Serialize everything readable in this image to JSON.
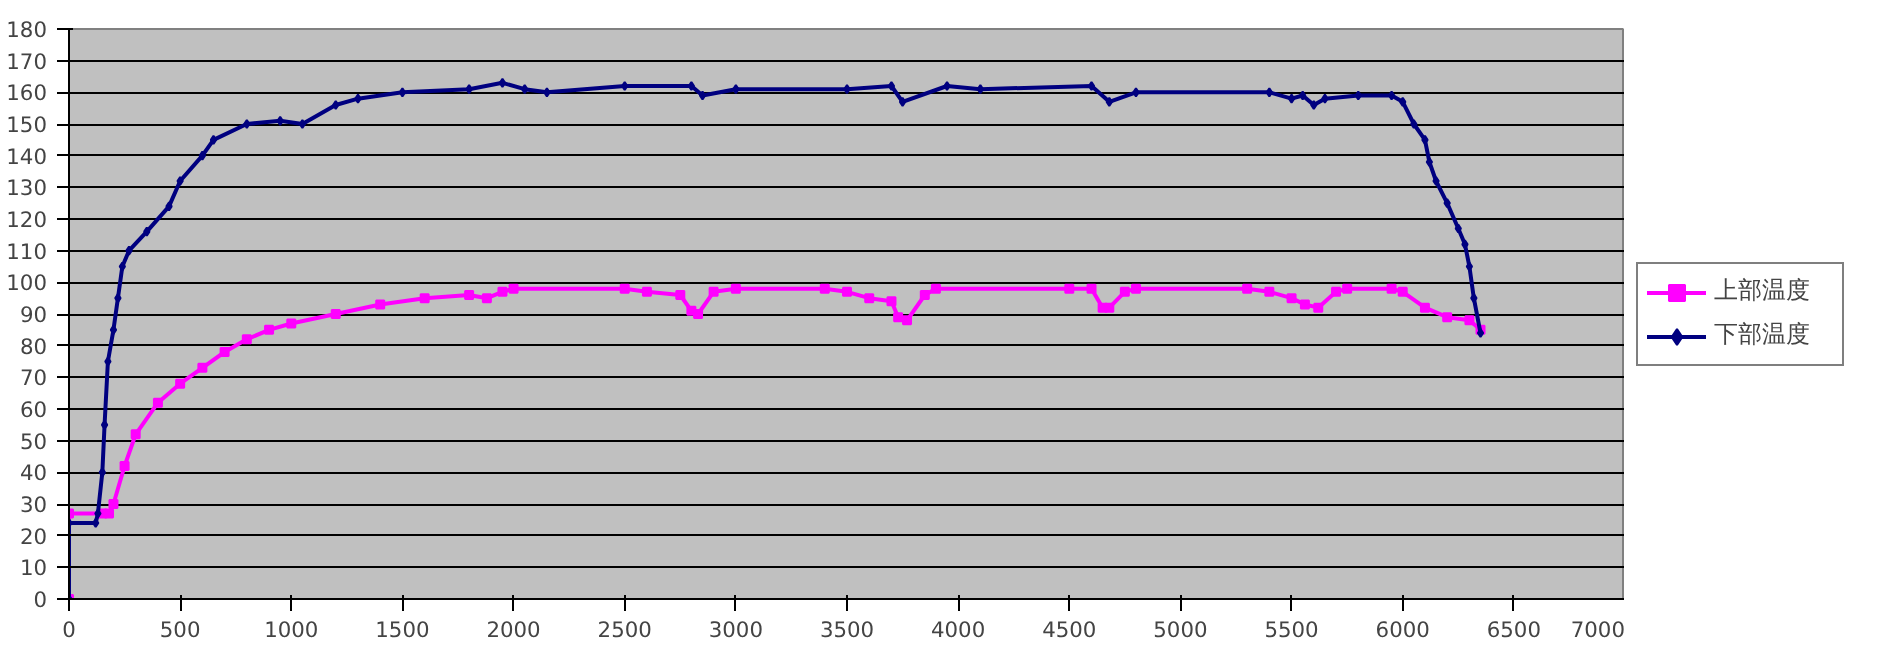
{
  "chart_data": {
    "type": "line",
    "xlim": [
      0,
      7000
    ],
    "xticks": [
      0,
      500,
      1000,
      1500,
      2000,
      2500,
      3000,
      3500,
      4000,
      4500,
      5000,
      5500,
      6000,
      6500,
      7000
    ],
    "ylim": [
      0,
      180
    ],
    "yticks": [
      0,
      10,
      20,
      30,
      40,
      50,
      60,
      70,
      80,
      90,
      100,
      110,
      120,
      130,
      140,
      150,
      160,
      170,
      180
    ],
    "grid": "y",
    "legend": "right",
    "series": [
      {
        "name": "上部温度",
        "color": "#ff00ff",
        "marker": "square",
        "x": [
          0,
          0,
          150,
          180,
          200,
          250,
          300,
          400,
          500,
          600,
          700,
          800,
          900,
          1000,
          1200,
          1400,
          1600,
          1800,
          1880,
          1950,
          2000,
          2500,
          2600,
          2750,
          2800,
          2830,
          2900,
          3000,
          3400,
          3500,
          3600,
          3700,
          3730,
          3770,
          3850,
          3900,
          4500,
          4600,
          4650,
          4680,
          4750,
          4800,
          5300,
          5400,
          5500,
          5560,
          5620,
          5700,
          5750,
          5950,
          6000,
          6100,
          6200,
          6300,
          6350
        ],
        "values": [
          0,
          27,
          27,
          27,
          30,
          42,
          52,
          62,
          68,
          73,
          78,
          82,
          85,
          87,
          90,
          93,
          95,
          96,
          95,
          97,
          98,
          98,
          97,
          96,
          91,
          90,
          97,
          98,
          98,
          97,
          95,
          94,
          89,
          88,
          96,
          98,
          98,
          98,
          92,
          92,
          97,
          98,
          98,
          97,
          95,
          93,
          92,
          97,
          98,
          98,
          97,
          92,
          89,
          88,
          85
        ]
      },
      {
        "name": "下部温度",
        "color": "#000080",
        "marker": "diamond",
        "x": [
          0,
          0,
          120,
          130,
          150,
          160,
          175,
          200,
          220,
          240,
          270,
          350,
          450,
          500,
          600,
          650,
          800,
          950,
          1050,
          1200,
          1300,
          1500,
          1800,
          1950,
          2050,
          2150,
          2500,
          2800,
          2850,
          3000,
          3500,
          3700,
          3750,
          3950,
          4100,
          4600,
          4680,
          4800,
          5400,
          5500,
          5550,
          5600,
          5650,
          5800,
          5950,
          6000,
          6050,
          6100,
          6120,
          6150,
          6200,
          6250,
          6280,
          6300,
          6320,
          6350
        ],
        "values": [
          0,
          24,
          24,
          27,
          40,
          55,
          75,
          85,
          95,
          105,
          110,
          116,
          124,
          132,
          140,
          145,
          150,
          151,
          150,
          156,
          158,
          160,
          161,
          163,
          161,
          160,
          162,
          162,
          159,
          161,
          161,
          162,
          157,
          162,
          161,
          162,
          157,
          160,
          160,
          158,
          159,
          156,
          158,
          159,
          159,
          157,
          150,
          145,
          138,
          132,
          125,
          117,
          112,
          105,
          95,
          84
        ]
      }
    ]
  }
}
